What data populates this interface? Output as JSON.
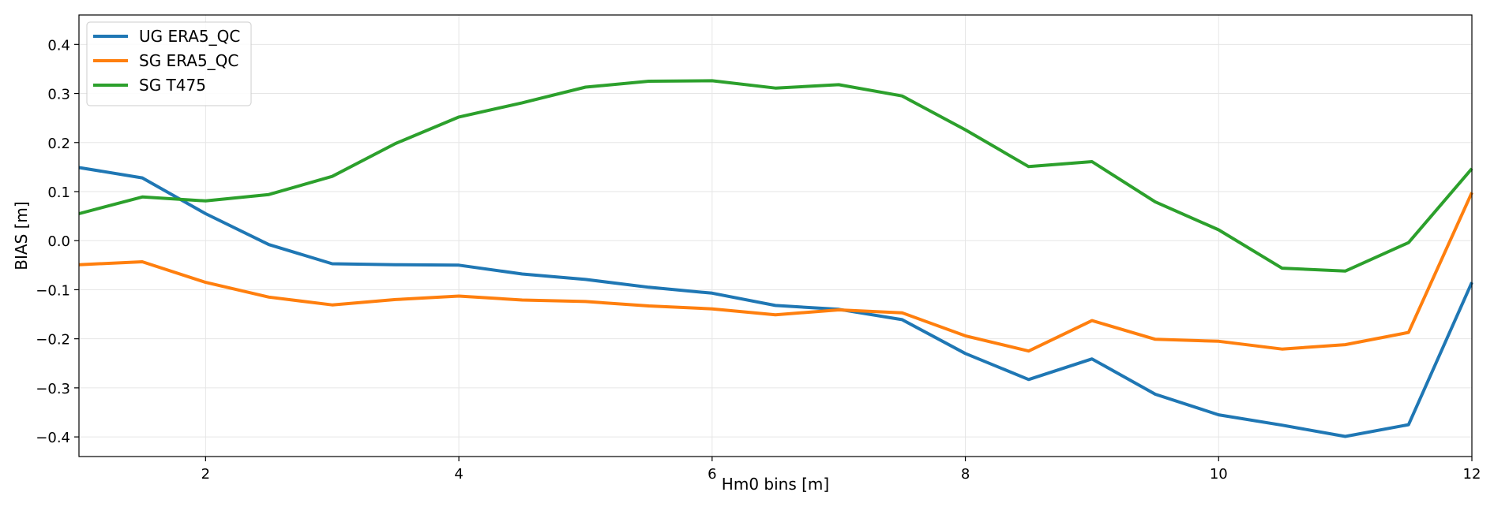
{
  "chart_data": {
    "type": "line",
    "xlabel": "Hm0 bins [m]",
    "ylabel": "BIAS [m]",
    "xlim": [
      1,
      12
    ],
    "ylim": [
      -0.44,
      0.46
    ],
    "xticks": [
      2,
      4,
      6,
      8,
      10,
      12
    ],
    "yticks": [
      -0.4,
      -0.3,
      -0.2,
      -0.1,
      0.0,
      0.1,
      0.2,
      0.3,
      0.4
    ],
    "grid": true,
    "legend_position": "top-left",
    "x": [
      1.0,
      1.5,
      2.0,
      2.5,
      3.0,
      3.5,
      4.0,
      4.5,
      5.0,
      5.5,
      6.0,
      6.5,
      7.0,
      7.5,
      8.0,
      8.5,
      9.0,
      9.5,
      10.0,
      10.5,
      11.0,
      11.5,
      12.0
    ],
    "series": [
      {
        "name": "UG ERA5_QC",
        "color": "#1f77b4",
        "values": [
          0.149,
          0.128,
          0.055,
          -0.008,
          -0.047,
          -0.049,
          -0.05,
          -0.068,
          -0.079,
          -0.095,
          -0.107,
          -0.132,
          -0.14,
          -0.161,
          -0.23,
          -0.283,
          -0.241,
          -0.313,
          -0.355,
          -0.376,
          -0.399,
          -0.375,
          -0.085
        ]
      },
      {
        "name": "SG ERA5_QC",
        "color": "#ff7f0e",
        "values": [
          -0.049,
          -0.043,
          -0.085,
          -0.115,
          -0.131,
          -0.12,
          -0.113,
          -0.121,
          -0.124,
          -0.133,
          -0.139,
          -0.151,
          -0.141,
          -0.147,
          -0.194,
          -0.225,
          -0.163,
          -0.201,
          -0.205,
          -0.221,
          -0.212,
          -0.187,
          0.098
        ]
      },
      {
        "name": "SG T475",
        "color": "#2ca02c",
        "values": [
          0.055,
          0.089,
          0.081,
          0.094,
          0.131,
          0.198,
          0.252,
          0.281,
          0.313,
          0.325,
          0.326,
          0.311,
          0.318,
          0.295,
          0.226,
          0.151,
          0.161,
          0.079,
          0.022,
          -0.056,
          -0.062,
          -0.004,
          0.147
        ]
      }
    ]
  }
}
